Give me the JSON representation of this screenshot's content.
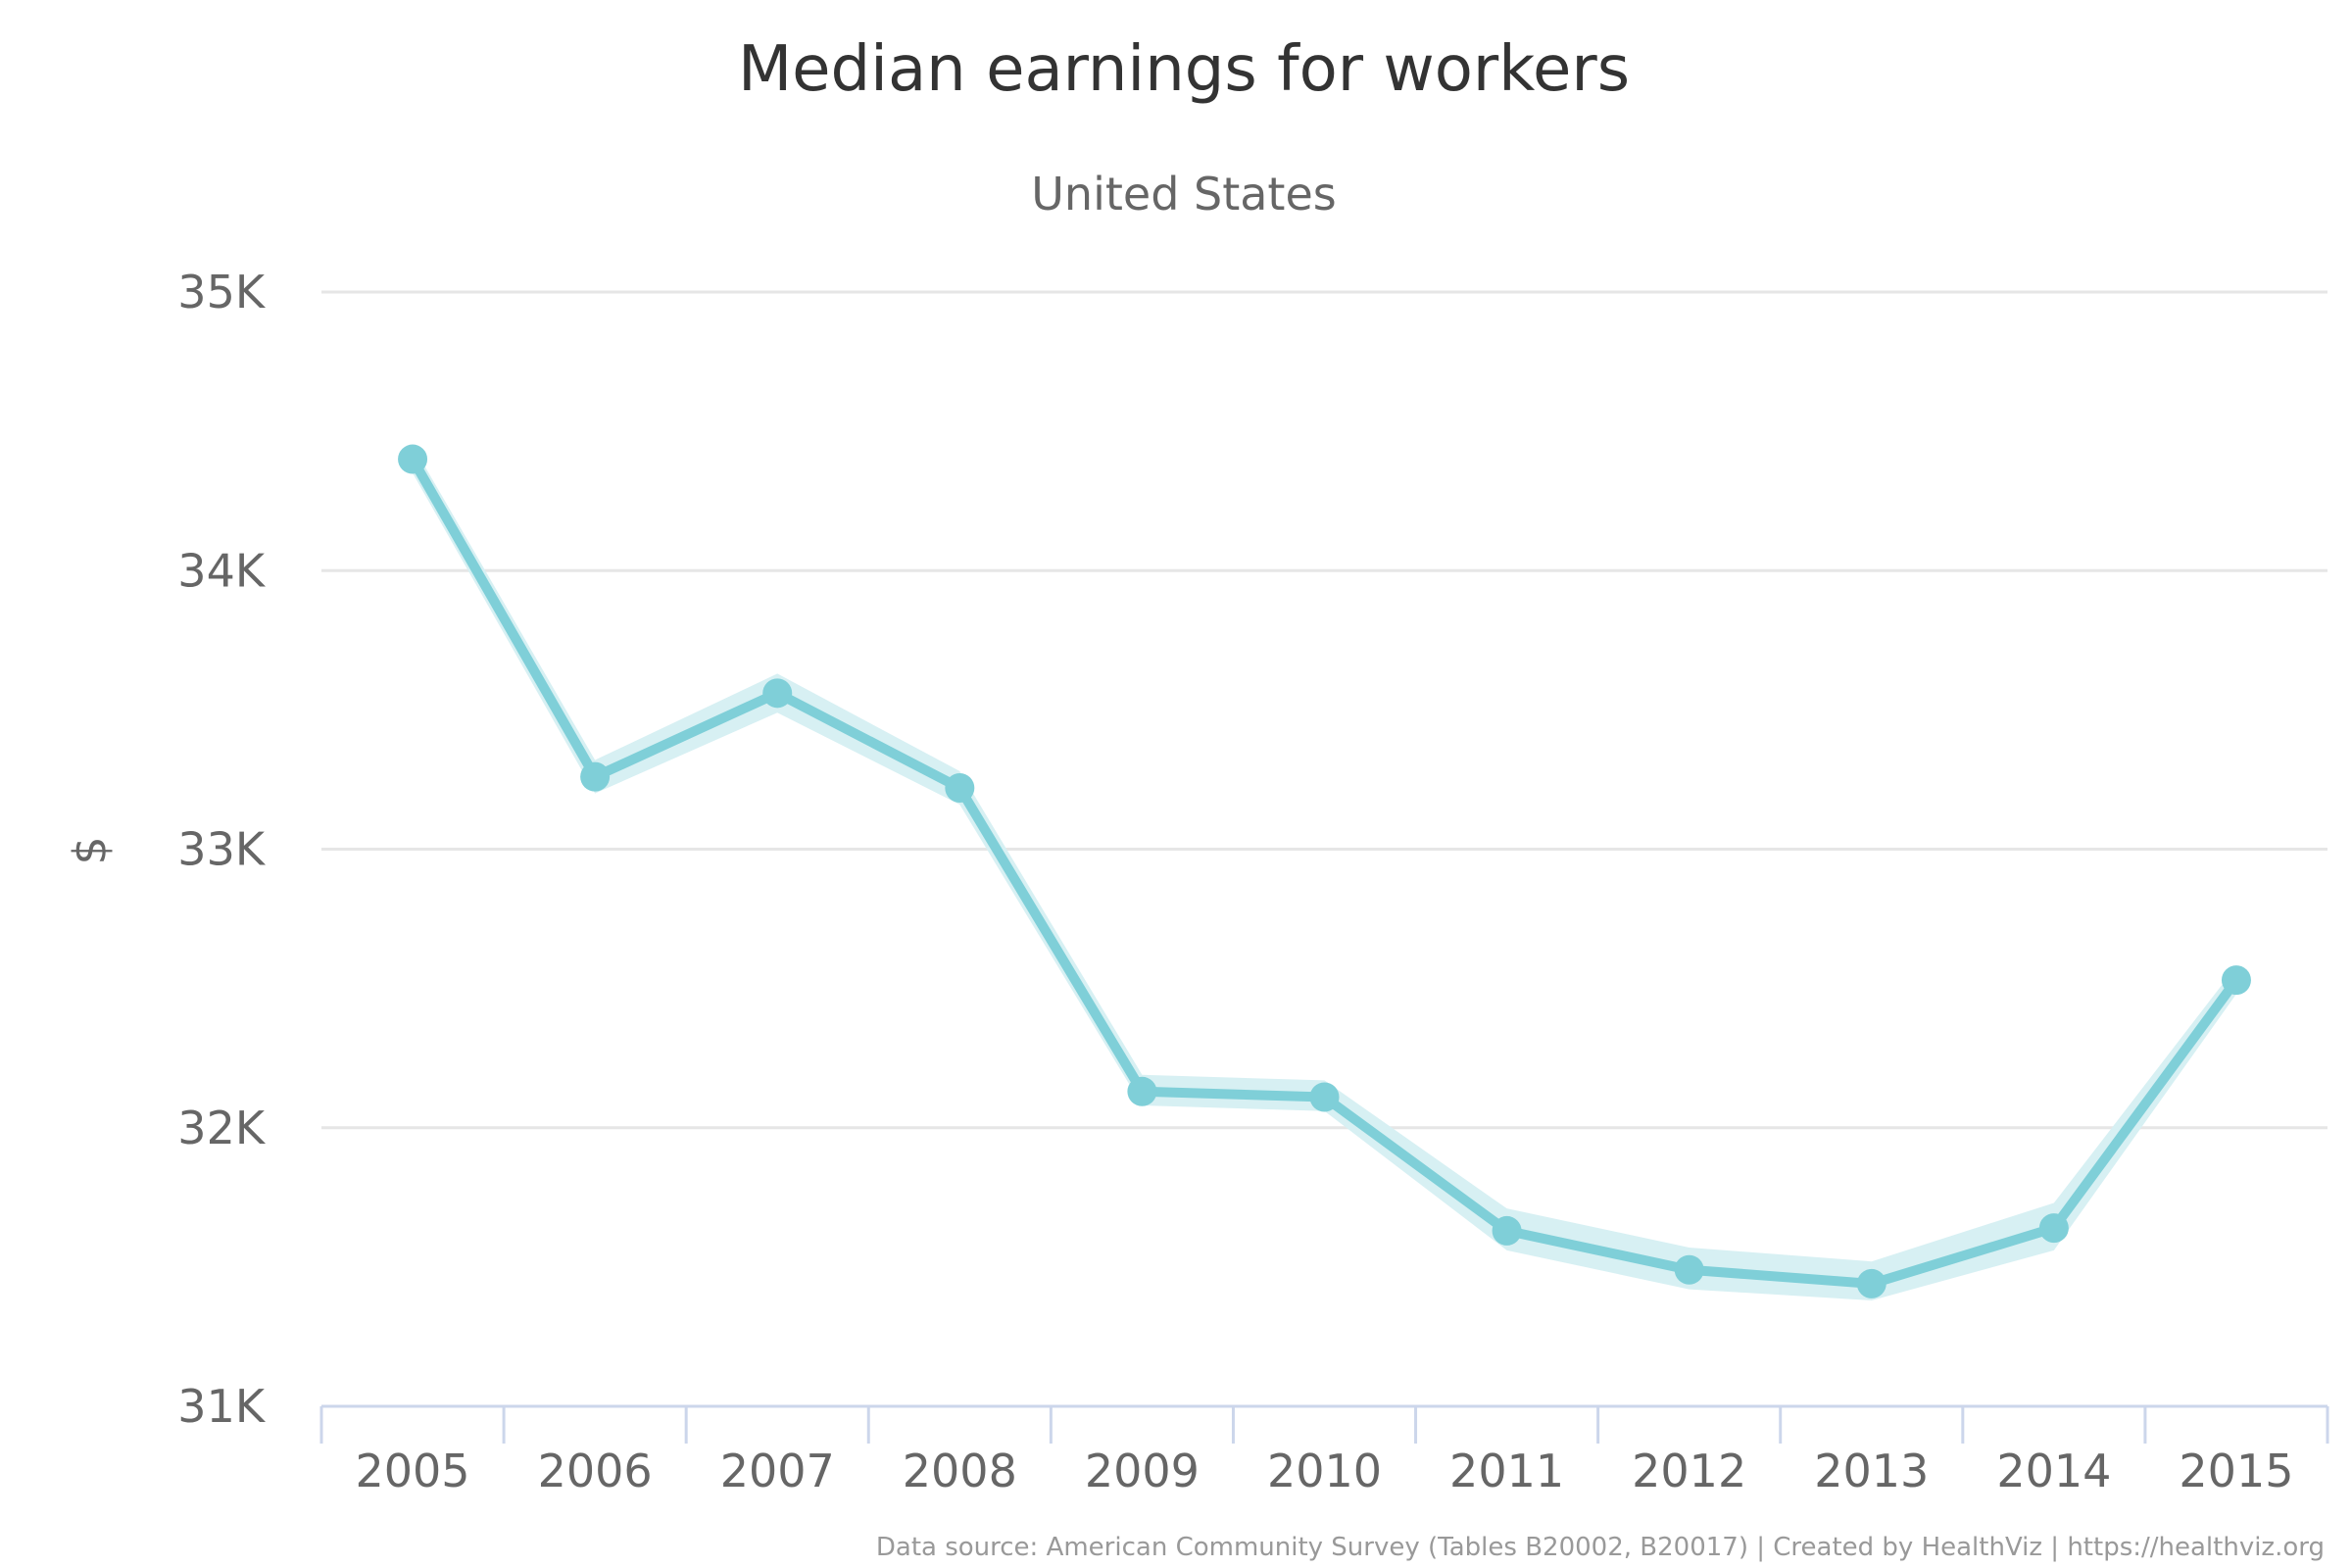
{
  "chart_data": {
    "type": "line",
    "title": "Median earnings for workers",
    "subtitle": "United States",
    "ylabel": "$",
    "xlabel": "",
    "ylim": [
      31000,
      35000
    ],
    "yticks": [
      31000,
      32000,
      33000,
      34000,
      35000
    ],
    "ytick_labels": [
      "31K",
      "32K",
      "33K",
      "34K",
      "35K"
    ],
    "grid": true,
    "legend": "none",
    "categories": [
      "2005",
      "2006",
      "2007",
      "2008",
      "2009",
      "2010",
      "2011",
      "2012",
      "2013",
      "2014",
      "2015"
    ],
    "series": [
      {
        "values": [
          34400,
          33260,
          33560,
          33220,
          32130,
          32110,
          31630,
          31490,
          31440,
          31640,
          32530
        ],
        "band_low": [
          34350,
          33200,
          33490,
          33160,
          32080,
          32060,
          31560,
          31420,
          31380,
          31560,
          32480
        ],
        "band_high": [
          34450,
          33320,
          33630,
          33280,
          32190,
          32170,
          31710,
          31570,
          31520,
          31730,
          32580
        ],
        "color": "#7fcfd8",
        "band_color": "#d7f0f3"
      }
    ],
    "credits": "Data source: American Community Survey (Tables B20002, B20017) | Created by HealthViz | https://healthviz.org"
  }
}
